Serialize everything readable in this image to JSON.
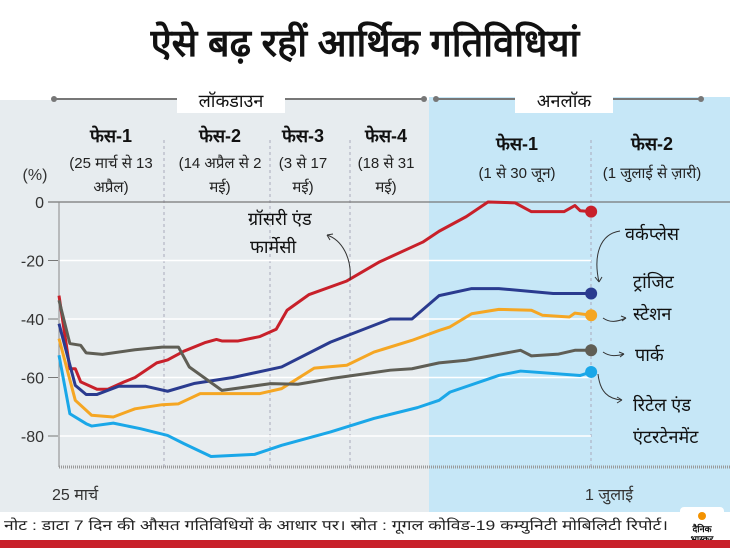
{
  "title": "ऐसे बढ़ रहीं आर्थिक गतिविधियां",
  "periods": {
    "lockdown": "लॉकडाउन",
    "unlock": "अनलॉक"
  },
  "phases": [
    {
      "name": "फेस-1",
      "line1": "(25 मार्च से 13",
      "line2": "अप्रैल)"
    },
    {
      "name": "फेस-2",
      "line1": "(14 अप्रैल से 2",
      "line2": "मई)"
    },
    {
      "name": "फेस-3",
      "line1": "(3 से 17",
      "line2": "मई)"
    },
    {
      "name": "फेस-4",
      "line1": "(18 से 31",
      "line2": "मई)"
    },
    {
      "name": "फेस-1",
      "line1": "(1 से 30 जून)",
      "line2": ""
    },
    {
      "name": "फेस-2",
      "line1": "(1 जुलाई से ज़ारी)",
      "line2": ""
    }
  ],
  "footer": {
    "note": "नोट : डाटा 7 दिन की औसत गतिविधियों के आधार पर। स्रोत : गूगल कोविड-19 कम्युनिटी मोबिलिटी रिपोर्ट।",
    "logo": "दैनिक भास्कर"
  },
  "colors": {
    "lockdown_bg": "#e7ecef",
    "unlock_bg": "#c6e7f7",
    "accent_bar": "#c8202a"
  },
  "chart_data": {
    "type": "line",
    "ylabel": "(%)",
    "ylim": [
      -90,
      0
    ],
    "yticks": [
      "0",
      "-20",
      "-40",
      "-60",
      "-80"
    ],
    "xlabels": [
      "25 मार्च",
      "1 जुलाई"
    ],
    "x_range": [
      "03-25",
      "07-01"
    ],
    "grid": true,
    "series": [
      {
        "name": "ग्रॉसरी एंड फार्मेसी",
        "name_line1": "ग्रॉसरी एंड",
        "name_line2": "फार्मेसी",
        "color": "#c8202a",
        "points": [
          [
            "03-25",
            -32
          ],
          [
            "03-27",
            -57
          ],
          [
            "03-28",
            -57
          ],
          [
            "03-29",
            -61.5
          ],
          [
            "04-01",
            -64
          ],
          [
            "04-03",
            -64
          ],
          [
            "04-06",
            -61.5
          ],
          [
            "04-08",
            -60
          ],
          [
            "04-12",
            -55
          ],
          [
            "04-14",
            -54
          ],
          [
            "04-17",
            -51
          ],
          [
            "04-21",
            -48
          ],
          [
            "04-23",
            -47
          ],
          [
            "04-24",
            -47.5
          ],
          [
            "04-27",
            -47.5
          ],
          [
            "05-01",
            -46
          ],
          [
            "05-04",
            -43.5
          ],
          [
            "05-06",
            -37
          ],
          [
            "05-10",
            -31.7
          ],
          [
            "05-17",
            -27
          ],
          [
            "05-23",
            -20.5
          ],
          [
            "05-31",
            -13.7
          ],
          [
            "06-03",
            -10
          ],
          [
            "06-08",
            -5
          ],
          [
            "06-12",
            0
          ],
          [
            "06-17",
            -0.3
          ],
          [
            "06-20",
            -3.3
          ],
          [
            "06-26",
            -3.3
          ],
          [
            "06-28",
            -1.2
          ],
          [
            "06-29",
            -3
          ],
          [
            "07-01",
            -3.3
          ]
        ]
      },
      {
        "name": "वर्कप्लेस",
        "name_line1": "वर्कप्लेस",
        "name_line2": "",
        "color": "#2a3b8f",
        "points": [
          [
            "03-25",
            -41.6
          ],
          [
            "03-28",
            -62.7
          ],
          [
            "03-30",
            -65.8
          ],
          [
            "04-01",
            -65.8
          ],
          [
            "04-05",
            -63
          ],
          [
            "04-10",
            -63
          ],
          [
            "04-14",
            -64.7
          ],
          [
            "04-19",
            -62
          ],
          [
            "04-26",
            -60
          ],
          [
            "05-05",
            -56.4
          ],
          [
            "05-14",
            -47.9
          ],
          [
            "05-25",
            -40
          ],
          [
            "05-29",
            -40
          ],
          [
            "06-03",
            -32
          ],
          [
            "06-09",
            -29.6
          ],
          [
            "06-14",
            -29.6
          ],
          [
            "06-24",
            -31.3
          ],
          [
            "07-01",
            -31.3
          ]
        ]
      },
      {
        "name": "ट्रांजिट स्टेशन",
        "name_line1": "ट्रांजिट",
        "name_line2": "स्टेशन",
        "color": "#f5a623",
        "points": [
          [
            "03-25",
            -46.7
          ],
          [
            "03-28",
            -67.8
          ],
          [
            "03-31",
            -72.9
          ],
          [
            "04-04",
            -73.5
          ],
          [
            "04-08",
            -70.7
          ],
          [
            "04-13",
            -69.3
          ],
          [
            "04-16",
            -69
          ],
          [
            "04-20",
            -65.5
          ],
          [
            "05-01",
            -65.5
          ],
          [
            "05-05",
            -63.8
          ],
          [
            "05-11",
            -56.8
          ],
          [
            "05-17",
            -55.8
          ],
          [
            "05-22",
            -51.3
          ],
          [
            "05-29",
            -47.3
          ],
          [
            "06-03",
            -43.9
          ],
          [
            "06-05",
            -42.7
          ],
          [
            "06-09",
            -38.2
          ],
          [
            "06-14",
            -36.7
          ],
          [
            "06-20",
            -37
          ],
          [
            "06-22",
            -38.7
          ],
          [
            "06-27",
            -39.3
          ],
          [
            "06-28",
            -38
          ],
          [
            "07-01",
            -38.7
          ]
        ]
      },
      {
        "name": "पार्क",
        "name_line1": "पार्क",
        "name_line2": "",
        "color": "#5f5e55",
        "points": [
          [
            "03-25",
            -33.6
          ],
          [
            "03-27",
            -48.4
          ],
          [
            "03-29",
            -49
          ],
          [
            "03-30",
            -51.6
          ],
          [
            "04-02",
            -52.1
          ],
          [
            "04-08",
            -50.5
          ],
          [
            "04-13",
            -49.6
          ],
          [
            "04-16",
            -49.6
          ],
          [
            "04-18",
            -56.4
          ],
          [
            "04-24",
            -64.4
          ],
          [
            "05-03",
            -62.1
          ],
          [
            "05-08",
            -62.3
          ],
          [
            "05-14",
            -60.4
          ],
          [
            "05-25",
            -57.5
          ],
          [
            "05-29",
            -57
          ],
          [
            "06-03",
            -55
          ],
          [
            "06-08",
            -54.1
          ],
          [
            "06-18",
            -50.7
          ],
          [
            "06-20",
            -52.6
          ],
          [
            "06-25",
            -52
          ],
          [
            "06-28",
            -50.7
          ],
          [
            "07-01",
            -50.7
          ]
        ]
      },
      {
        "name": "रिटेल एंड एंटरटेनमेंट",
        "name_line1": "रिटेल एंड",
        "name_line2": "एंटरटेनमेंट",
        "color": "#1aa7e8",
        "points": [
          [
            "03-25",
            -52.4
          ],
          [
            "03-27",
            -72.4
          ],
          [
            "03-30",
            -75.8
          ],
          [
            "03-31",
            -76.6
          ],
          [
            "04-04",
            -75.6
          ],
          [
            "04-09",
            -77.5
          ],
          [
            "04-14",
            -79.8
          ],
          [
            "04-17",
            -82.6
          ],
          [
            "04-22",
            -87
          ],
          [
            "04-30",
            -86.3
          ],
          [
            "05-05",
            -83.2
          ],
          [
            "05-14",
            -78.6
          ],
          [
            "05-22",
            -74
          ],
          [
            "05-30",
            -70.3
          ],
          [
            "06-03",
            -67.8
          ],
          [
            "06-05",
            -65
          ],
          [
            "06-14",
            -59.3
          ],
          [
            "06-18",
            -57.8
          ],
          [
            "06-29",
            -59.3
          ],
          [
            "07-01",
            -58.1
          ]
        ]
      }
    ]
  }
}
